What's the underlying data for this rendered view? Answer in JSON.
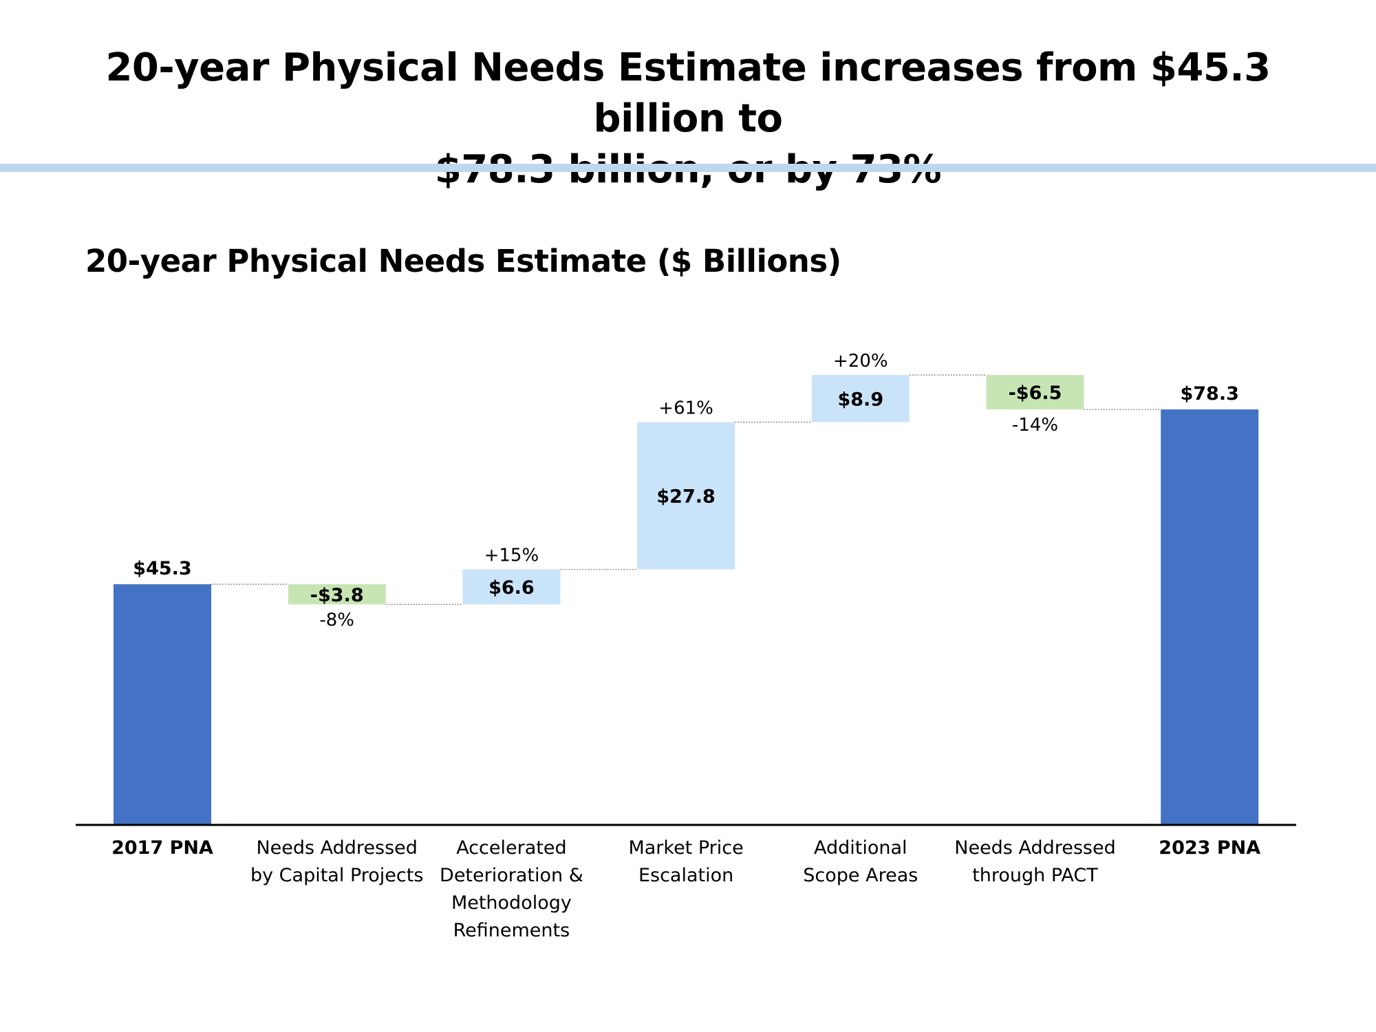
{
  "slide": {
    "title_line1": "20-year Physical Needs Estimate increases from $45.3 billion to",
    "title_line2": "$78.3 billion, or by 73%",
    "accent_rule_color": "#bdd7ee"
  },
  "chart_data": {
    "type": "bar",
    "variant": "waterfall",
    "title": "20-year Physical Needs Estimate ($ Billions)",
    "xlabel": "",
    "ylabel": "",
    "grid": false,
    "legend": "none",
    "ylim": [
      0,
      85
    ],
    "categories": [
      [
        "2017 PNA"
      ],
      [
        "Needs Addressed",
        "by Capital Projects"
      ],
      [
        "Accelerated",
        "Deterioration &",
        "Methodology",
        "Refinements"
      ],
      [
        "Market Price",
        "Escalation"
      ],
      [
        "Additional",
        "Scope Areas"
      ],
      [
        "Needs Addressed",
        "through PACT"
      ],
      [
        "2023 PNA"
      ]
    ],
    "bold_categories": [
      0,
      6
    ],
    "values": [
      45.3,
      -3.8,
      6.6,
      27.8,
      8.9,
      -6.5,
      78.3
    ],
    "kinds": [
      "total",
      "decrease",
      "increase",
      "increase",
      "increase",
      "decrease",
      "total"
    ],
    "value_labels": [
      "$45.3",
      "-$3.8",
      "$6.6",
      "$27.8",
      "$8.9",
      "-$6.5",
      "$78.3"
    ],
    "percent_labels": [
      "",
      "-8%",
      "+15%",
      "+61%",
      "+20%",
      "-14%",
      ""
    ],
    "colors": {
      "total": "#4472c4",
      "increase": "#c9e3f9",
      "decrease": "#c6e5b3",
      "connector": "#7f7f7f",
      "axis": "#000000"
    }
  }
}
